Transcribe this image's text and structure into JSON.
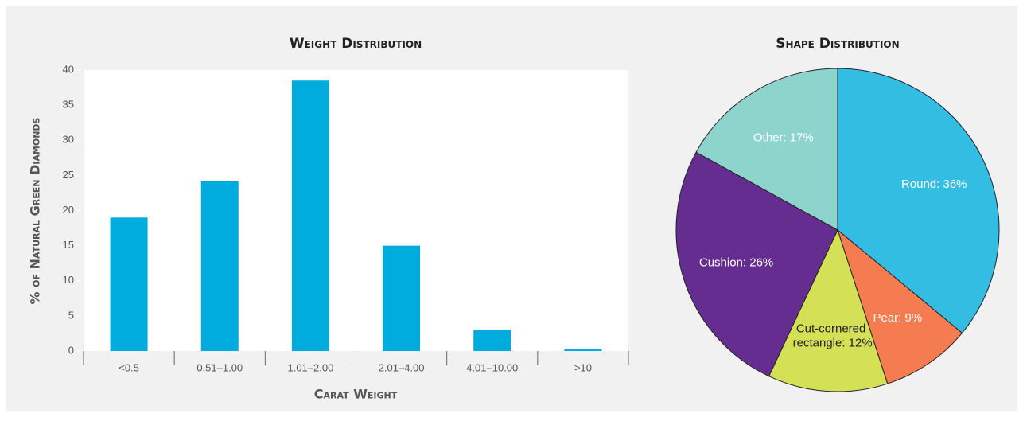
{
  "chart_data": [
    {
      "type": "bar",
      "title": "Weight Distribution",
      "x_label": "Carat Weight",
      "y_label": "% of Natural Green Diamonds",
      "categories": [
        "<0.5",
        "0.51–1.00",
        "1.01–2.00",
        "2.01–4.00",
        "4.01–10.00",
        ">10"
      ],
      "values": [
        19,
        24.2,
        38.5,
        15,
        3,
        0.3
      ],
      "color": "#00abdd",
      "ylim": [
        0,
        40
      ],
      "yticks": [
        0,
        5,
        10,
        15,
        20,
        25,
        30,
        35,
        40
      ]
    },
    {
      "type": "pie",
      "title": "Shape Distribution",
      "categories": [
        "Round",
        "Pear",
        "Cut-cornered rectangle",
        "Cushion",
        "Other"
      ],
      "values": [
        36,
        9,
        12,
        26,
        17
      ],
      "value_labels": [
        "Round: 36%",
        "Pear: 9%",
        "Cut-cornered rectangle: 12%",
        "Cushion: 26%",
        "Other: 17%"
      ],
      "colors": [
        "#33bde3",
        "#f47c50",
        "#d4e157",
        "#662d91",
        "#8dd5cc"
      ],
      "label_colors": [
        "#ffffff",
        "#ffffff",
        "#222222",
        "#ffffff",
        "#ffffff"
      ]
    }
  ]
}
